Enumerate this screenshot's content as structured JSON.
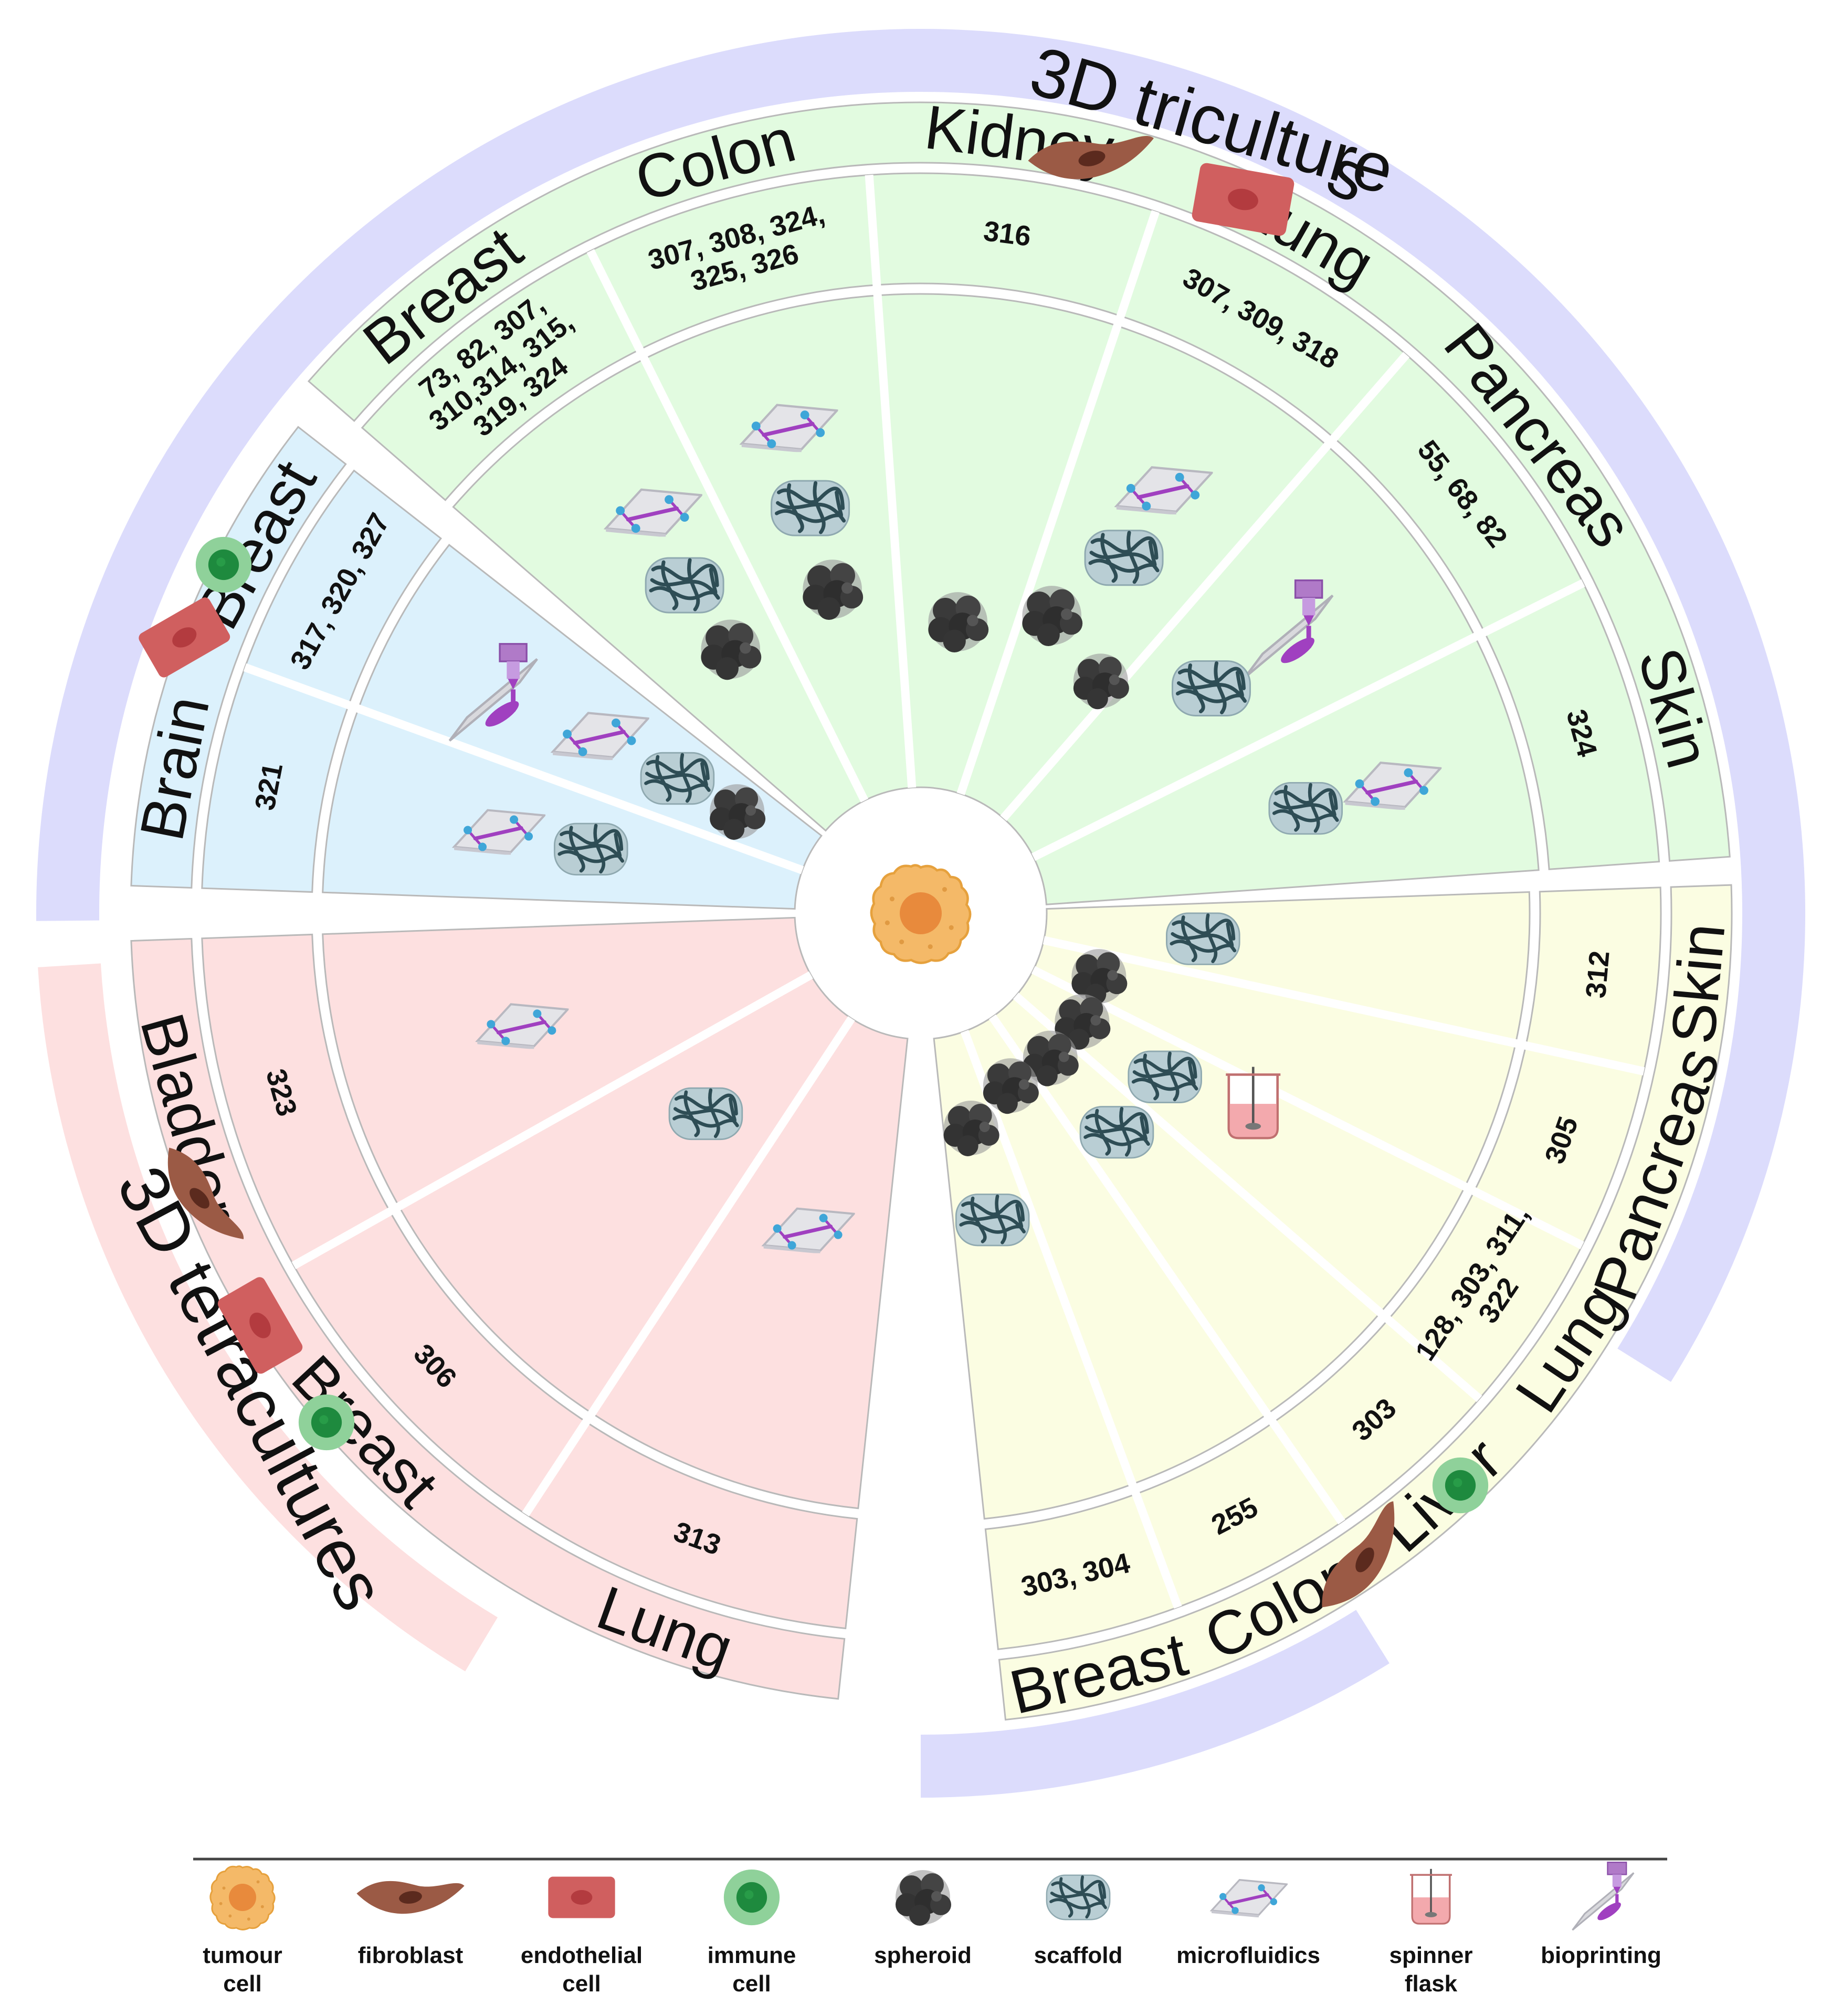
{
  "center_cell": "tumour-cell",
  "banners": {
    "tri_top": "3D triculture",
    "tri_right": "s",
    "tetra": "3D tetracultures"
  },
  "colors": {
    "triculture_band": "#dcdcfc",
    "panel_green": "#e2fbe0",
    "panel_yellow": "#fbfde2",
    "panel_blue": "#dcf1fc",
    "panel_pink": "#fde0e0",
    "fibroblast": "#9b5a45",
    "endothelial": "#d05f5f",
    "immune": "#2e9e50",
    "tumour": "#f0a847",
    "spheroid": "#3a3a3a",
    "scaffold": "#2e4d55"
  },
  "groups": {
    "green": {
      "organs": [
        "Breast",
        "Colon",
        "Kidney",
        "Lung",
        "Pancreas",
        "Skin"
      ],
      "refs": [
        [
          "73, 82, 307,",
          "310,314, 315,",
          "319, 324"
        ],
        [
          "307, 308, 324,",
          "325, 326"
        ],
        [
          "316"
        ],
        [
          "307, 309, 318"
        ],
        [
          "55, 68, 82"
        ],
        [
          "324"
        ]
      ]
    },
    "blue": {
      "organs": [
        "Brain",
        "Breast"
      ],
      "refs": [
        [
          "321"
        ],
        [
          "317, 320, 327"
        ]
      ]
    },
    "yellow": {
      "organs": [
        "Breast",
        "Colon",
        "Liver",
        "Lung",
        "Pancreas",
        "Skin"
      ],
      "refs": [
        [
          "303, 304"
        ],
        [
          "255"
        ],
        [
          "303"
        ],
        [
          "128, 303, 311,",
          "322"
        ],
        [
          "305"
        ],
        [
          "312"
        ]
      ]
    },
    "pink": {
      "organs": [
        "Bladder",
        "Breast",
        "Lung"
      ],
      "refs": [
        [
          "323"
        ],
        [
          "306"
        ],
        [
          "313"
        ]
      ]
    }
  },
  "legend": [
    {
      "icon": "tumour-cell-icon",
      "label": [
        "tumour",
        "cell"
      ]
    },
    {
      "icon": "fibroblast-icon",
      "label": [
        "fibroblast"
      ]
    },
    {
      "icon": "endothelial-cell-icon",
      "label": [
        "endothelial",
        "cell"
      ]
    },
    {
      "icon": "immune-cell-icon",
      "label": [
        "immune",
        "cell"
      ]
    },
    {
      "icon": "spheroid-icon",
      "label": [
        "spheroid"
      ]
    },
    {
      "icon": "scaffold-icon",
      "label": [
        "scaffold"
      ]
    },
    {
      "icon": "microfluidics-icon",
      "label": [
        "microfluidics"
      ]
    },
    {
      "icon": "spinner-flask-icon",
      "label": [
        "spinner",
        "flask"
      ]
    },
    {
      "icon": "bioprinting-icon",
      "label": [
        "bioprinting"
      ]
    }
  ]
}
